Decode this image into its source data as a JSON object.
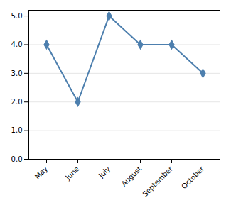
{
  "chart_data": {
    "type": "line",
    "categories": [
      "May",
      "June",
      "July",
      "August",
      "September",
      "October"
    ],
    "values": [
      4,
      2,
      5,
      4,
      4,
      3
    ],
    "color": "#4d7fae",
    "marker": "diamond",
    "ylim": [
      0,
      5.2
    ],
    "yticks": [
      0,
      1,
      2,
      3,
      4,
      5
    ],
    "grid": true
  }
}
